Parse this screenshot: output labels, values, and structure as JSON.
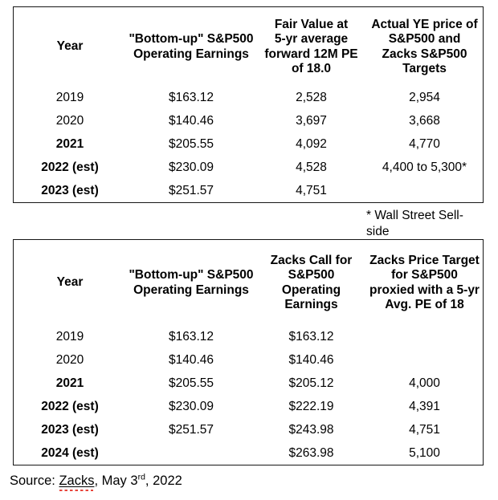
{
  "page": {
    "background": "#ffffff",
    "text_color": "#000000",
    "border_color": "#161616",
    "spellcheck_squiggle_color": "#e8463c"
  },
  "chart_data": [
    {
      "type": "table",
      "name": "fair-value-vs-actual-price-table",
      "columns": [
        "Year",
        "\"Bottom-up\" S&P500\nOperating Earnings",
        "Fair Value at\n5-yr average\nforward 12M PE\nof 18.0",
        "Actual YE price of\nS&P500 and\nZacks S&P500\nTargets"
      ],
      "rows": [
        {
          "year": "2019",
          "bold": false,
          "earnings": "$163.12",
          "fair_value": "2,528",
          "actual": "2,954"
        },
        {
          "year": "2020",
          "bold": false,
          "earnings": "$140.46",
          "fair_value": "3,697",
          "actual": "3,668"
        },
        {
          "year": "2021",
          "bold": true,
          "earnings": "$205.55",
          "fair_value": "4,092",
          "actual": "4,770"
        },
        {
          "year": "2022 (est)",
          "bold": true,
          "earnings": "$230.09",
          "fair_value": "4,528",
          "actual": "4,400 to 5,300*"
        },
        {
          "year": "2023 (est)",
          "bold": true,
          "earnings": "$251.57",
          "fair_value": "4,751",
          "actual": ""
        }
      ]
    },
    {
      "type": "table",
      "name": "zacks-call-and-price-target-table",
      "columns": [
        "Year",
        "\"Bottom-up\" S&P500\nOperating Earnings",
        "Zacks Call for\nS&P500\nOperating\nEarnings",
        "Zacks Price Target\nfor S&P500\nproxied with a 5-yr\nAvg. PE of 18"
      ],
      "rows": [
        {
          "year": "2019",
          "bold": false,
          "earnings": "$163.12",
          "zacks_call": "$163.12",
          "price_target": ""
        },
        {
          "year": "2020",
          "bold": false,
          "earnings": "$140.46",
          "zacks_call": "$140.46",
          "price_target": ""
        },
        {
          "year": "2021",
          "bold": true,
          "earnings": "$205.55",
          "zacks_call": "$205.12",
          "price_target": "4,000"
        },
        {
          "year": "2022 (est)",
          "bold": true,
          "earnings": "$230.09",
          "zacks_call": "$222.19",
          "price_target": "4,391"
        },
        {
          "year": "2023 (est)",
          "bold": true,
          "earnings": "$251.57",
          "zacks_call": "$243.98",
          "price_target": "4,751"
        },
        {
          "year": "2024 (est)",
          "bold": true,
          "earnings": "",
          "zacks_call": "$263.98",
          "price_target": "5,100"
        }
      ]
    }
  ],
  "footnote": "* Wall Street Sell-side",
  "source": {
    "prefix": "Source: ",
    "link_text": "Zacks",
    "mid": ", May 3",
    "superscript": "rd",
    "end": ", 2022"
  }
}
